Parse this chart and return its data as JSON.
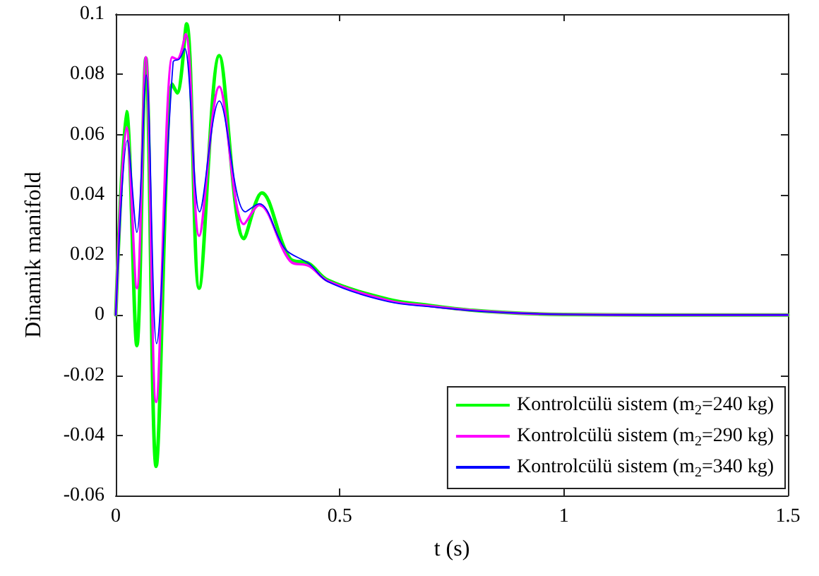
{
  "chart_data": {
    "type": "line",
    "xlabel": "t (s)",
    "ylabel": "Dinamik manifold",
    "xlim": [
      0,
      1.5
    ],
    "xticks": [
      0,
      0.5,
      1,
      1.5
    ],
    "ylim": [
      -0.06,
      0.1
    ],
    "yticks": [
      -0.06,
      -0.04,
      -0.02,
      0,
      0.02,
      0.04,
      0.06,
      0.08,
      0.1
    ],
    "grid": false,
    "legend": "bottom right",
    "marker": "none",
    "line_style": "solid",
    "series": [
      {
        "name": "Kontrolcülü sistem (m$_{2}$=240 kg)",
        "color": "#00ff00",
        "x": [
          0,
          0.024,
          0.047,
          0.067,
          0.09,
          0.126,
          0.137,
          0.158,
          0.186,
          0.231,
          0.286,
          0.326,
          0.389,
          0.431,
          0.473,
          0.609,
          0.7,
          0.8,
          0.9,
          1.0,
          1.2,
          1.5
        ],
        "values": [
          0,
          0.0676,
          -0.0102,
          0.0854,
          -0.0503,
          0.0767,
          0.0738,
          0.0968,
          0.0089,
          0.0862,
          0.0254,
          0.0406,
          0.0187,
          0.0171,
          0.0116,
          0.0052,
          0.0032,
          0.0015,
          0.0006,
          0.0002,
          0,
          0
        ]
      },
      {
        "name": "Kontrolcülü sistem (m$_{2}$=290 kg)",
        "color": "#ff00ff",
        "x": [
          0,
          0.024,
          0.047,
          0.067,
          0.09,
          0.126,
          0.137,
          0.156,
          0.186,
          0.231,
          0.286,
          0.32,
          0.389,
          0.431,
          0.473,
          0.609,
          0.7,
          0.8,
          0.9,
          1.0,
          1.2,
          1.5
        ],
        "values": [
          0,
          0.0624,
          0.0089,
          0.0857,
          -0.0289,
          0.0857,
          0.085,
          0.0933,
          0.0263,
          0.0759,
          0.0302,
          0.0365,
          0.0179,
          0.0163,
          0.0113,
          0.0048,
          0.003,
          0.0015,
          0.0006,
          0.0002,
          0,
          0
        ]
      },
      {
        "name": "Kontrolcülü sistem (m$_{2}$=340 kg)",
        "color": "#0000ff",
        "x": [
          0,
          0.026,
          0.047,
          0.068,
          0.091,
          0.128,
          0.142,
          0.154,
          0.187,
          0.231,
          0.289,
          0.32,
          0.378,
          0.431,
          0.473,
          0.609,
          0.7,
          0.8,
          0.9,
          1.0,
          1.2,
          1.5
        ],
        "values": [
          0,
          0.0581,
          0.0275,
          0.0798,
          -0.0095,
          0.0841,
          0.0851,
          0.0886,
          0.0343,
          0.0711,
          0.0343,
          0.037,
          0.0219,
          0.0171,
          0.0111,
          0.0044,
          0.0028,
          0.0014,
          0.0006,
          0.0002,
          0,
          0
        ]
      }
    ]
  }
}
